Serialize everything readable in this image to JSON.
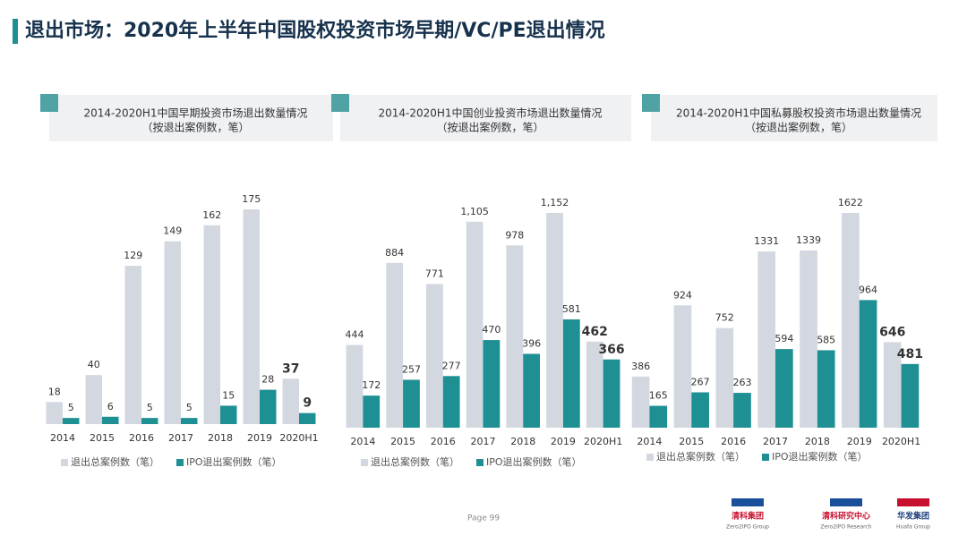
{
  "title": "退出市场：2020年上半年中国股权投资市场早期/VC/PE退出情况",
  "chart_data": [
    {
      "type": "bar",
      "title": "2014-2020H1中国早期投资市场退出数量情况",
      "subtitle": "（按退出案例数，笔）",
      "categories": [
        "2014",
        "2015",
        "2016",
        "2017",
        "2018",
        "2019",
        "2020H1"
      ],
      "series": [
        {
          "name": "退出总案例数（笔）",
          "color": "#d3d8e0",
          "values": [
            18,
            40,
            129,
            149,
            162,
            175,
            37
          ]
        },
        {
          "name": "IPO退出案例数（笔）",
          "color": "#1e8f93",
          "values": [
            5,
            6,
            5,
            5,
            15,
            28,
            9
          ]
        }
      ]
    },
    {
      "type": "bar",
      "title": "2014-2020H1中国创业投资市场退出数量情况",
      "subtitle": "（按退出案例数，笔）",
      "categories": [
        "2014",
        "2015",
        "2016",
        "2017",
        "2018",
        "2019",
        "2020H1"
      ],
      "series": [
        {
          "name": "退出总案例数（笔）",
          "color": "#d3d8e0",
          "values": [
            444,
            884,
            771,
            1105,
            978,
            1152,
            462
          ],
          "value_labels": [
            "444",
            "884",
            "771",
            "1,105",
            "978",
            "1,152",
            "462"
          ]
        },
        {
          "name": "IPO退出案例数（笔）",
          "color": "#1e8f93",
          "values": [
            172,
            257,
            277,
            470,
            396,
            581,
            366
          ]
        }
      ]
    },
    {
      "type": "bar",
      "title": "2014-2020H1中国私募股权投资市场退出数量情况",
      "subtitle": "（按退出案例数，笔）",
      "categories": [
        "2014",
        "2015",
        "2016",
        "2017",
        "2018",
        "2019",
        "2020H1"
      ],
      "series": [
        {
          "name": "退出总案例数（笔）",
          "color": "#d3d8e0",
          "values": [
            386,
            924,
            752,
            1331,
            1339,
            1622,
            646
          ]
        },
        {
          "name": "IPO退出案例数（笔）",
          "color": "#1e8f93",
          "values": [
            165,
            267,
            263,
            594,
            585,
            964,
            481
          ]
        }
      ]
    }
  ],
  "footer": {
    "page": "Page 99",
    "logos": [
      {
        "name": "清科集团",
        "sub": "Zero2IPO Group"
      },
      {
        "name": "清科研究中心",
        "sub": "Zero2IPO Research"
      },
      {
        "name": "华发集团",
        "sub": "Huafa Group"
      }
    ]
  }
}
